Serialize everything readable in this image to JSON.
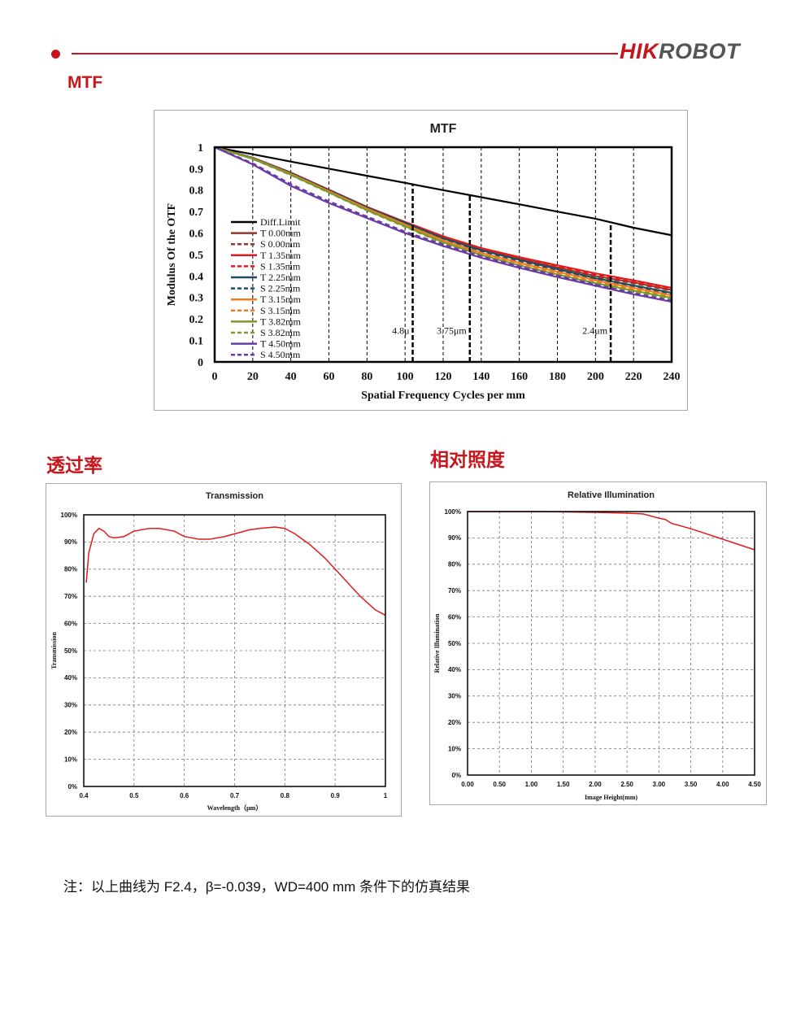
{
  "header": {
    "brand_red": "HIK",
    "brand_gray": "ROBOT",
    "accent_color": "#c8161d"
  },
  "sections": {
    "mtf_title": "MTF",
    "transmission_title": "透过率",
    "illumination_title": "相对照度"
  },
  "note": "注：以上曲线为 F2.4，β=-0.039，WD=400 mm 条件下的仿真结果",
  "chart_data": [
    {
      "type": "line",
      "title": "MTF",
      "xlabel": "Spatial Frequency Cycles per mm",
      "ylabel": "Modulus Of  the OTF",
      "xlim": [
        0,
        240
      ],
      "ylim": [
        0,
        1
      ],
      "xticks": [
        "0",
        "20",
        "40",
        "60",
        "80",
        "100",
        "120",
        "140",
        "160",
        "180",
        "200",
        "220",
        "240"
      ],
      "yticks": [
        "0",
        "0.1",
        "0.2",
        "0.3",
        "0.4",
        "0.5",
        "0.6",
        "0.7",
        "0.8",
        "0.9",
        "1"
      ],
      "grid": "dashed vertical",
      "legend": "left",
      "markers": [
        {
          "x": 104,
          "label": "4.8μ"
        },
        {
          "x": 134,
          "label": "3.75μm"
        },
        {
          "x": 208,
          "label": "2.4μm"
        }
      ],
      "x": [
        0,
        20,
        40,
        60,
        80,
        100,
        120,
        140,
        160,
        180,
        200,
        220,
        240
      ],
      "series": [
        {
          "name": "Diff.Limit",
          "color": "#000000",
          "dash": false,
          "values": [
            1,
            0.967,
            0.933,
            0.9,
            0.867,
            0.834,
            0.8,
            0.767,
            0.734,
            0.7,
            0.667,
            0.625,
            0.59
          ]
        },
        {
          "name": "T 0.00mm",
          "color": "#8b3a2e",
          "dash": false,
          "values": [
            1,
            0.95,
            0.88,
            0.8,
            0.72,
            0.65,
            0.58,
            0.525,
            0.48,
            0.44,
            0.4,
            0.37,
            0.335
          ]
        },
        {
          "name": "S 0.00mm",
          "color": "#8b3a2e",
          "dash": true,
          "values": [
            1,
            0.948,
            0.878,
            0.798,
            0.718,
            0.648,
            0.578,
            0.522,
            0.476,
            0.436,
            0.397,
            0.366,
            0.332
          ]
        },
        {
          "name": "T 1.35mm",
          "color": "#e31a1c",
          "dash": false,
          "values": [
            1,
            0.951,
            0.882,
            0.802,
            0.722,
            0.652,
            0.585,
            0.53,
            0.488,
            0.45,
            0.412,
            0.38,
            0.345
          ]
        },
        {
          "name": "S 1.35mm",
          "color": "#e31a1c",
          "dash": true,
          "values": [
            1,
            0.949,
            0.879,
            0.799,
            0.72,
            0.65,
            0.582,
            0.527,
            0.484,
            0.445,
            0.405,
            0.372,
            0.338
          ]
        },
        {
          "name": "T 2.25mm",
          "color": "#1f4e63",
          "dash": false,
          "values": [
            1,
            0.95,
            0.88,
            0.8,
            0.72,
            0.648,
            0.576,
            0.52,
            0.475,
            0.432,
            0.39,
            0.356,
            0.322
          ]
        },
        {
          "name": "S 2.25mm",
          "color": "#1f4e63",
          "dash": true,
          "values": [
            1,
            0.949,
            0.879,
            0.799,
            0.719,
            0.646,
            0.573,
            0.516,
            0.47,
            0.427,
            0.385,
            0.35,
            0.316
          ]
        },
        {
          "name": "T 3.15mm",
          "color": "#f47c20",
          "dash": false,
          "values": [
            1,
            0.948,
            0.876,
            0.795,
            0.714,
            0.64,
            0.566,
            0.508,
            0.462,
            0.42,
            0.38,
            0.345,
            0.31
          ]
        },
        {
          "name": "S 3.15mm",
          "color": "#f47c20",
          "dash": true,
          "values": [
            1,
            0.947,
            0.875,
            0.793,
            0.712,
            0.637,
            0.563,
            0.504,
            0.457,
            0.414,
            0.373,
            0.338,
            0.303
          ]
        },
        {
          "name": "T 3.82mm",
          "color": "#7a9a2a",
          "dash": false,
          "values": [
            1,
            0.946,
            0.872,
            0.79,
            0.707,
            0.632,
            0.557,
            0.498,
            0.45,
            0.407,
            0.367,
            0.332,
            0.298
          ]
        },
        {
          "name": "S 3.82mm",
          "color": "#7a9a2a",
          "dash": true,
          "values": [
            1,
            0.945,
            0.87,
            0.788,
            0.705,
            0.629,
            0.553,
            0.494,
            0.445,
            0.402,
            0.362,
            0.326,
            0.292
          ]
        },
        {
          "name": "T 4.50mm",
          "color": "#6a3ba8",
          "dash": false,
          "values": [
            1,
            0.92,
            0.82,
            0.74,
            0.67,
            0.6,
            0.54,
            0.485,
            0.438,
            0.395,
            0.355,
            0.315,
            0.28
          ]
        },
        {
          "name": "S 4.50mm",
          "color": "#6a3ba8",
          "dash": true,
          "values": [
            1,
            0.925,
            0.828,
            0.748,
            0.677,
            0.607,
            0.547,
            0.492,
            0.445,
            0.402,
            0.36,
            0.32,
            0.285
          ]
        }
      ]
    },
    {
      "type": "line",
      "title": "Transmission",
      "xlabel": "Wavelength（μm）",
      "ylabel": "Transmission",
      "xlim": [
        0.4,
        1
      ],
      "ylim": [
        0,
        100
      ],
      "xticks": [
        "0.4",
        "0.5",
        "0.6",
        "0.7",
        "0.8",
        "0.9",
        "1"
      ],
      "yticks": [
        "0%",
        "10%",
        "20%",
        "30%",
        "40%",
        "50%",
        "60%",
        "70%",
        "80%",
        "90%",
        "100%"
      ],
      "grid": "dashed",
      "color": "#e31a1c",
      "x": [
        0.405,
        0.41,
        0.42,
        0.43,
        0.44,
        0.45,
        0.46,
        0.48,
        0.5,
        0.53,
        0.55,
        0.58,
        0.6,
        0.63,
        0.65,
        0.68,
        0.7,
        0.73,
        0.75,
        0.78,
        0.8,
        0.82,
        0.85,
        0.88,
        0.9,
        0.93,
        0.95,
        0.98,
        1.0
      ],
      "values": [
        75,
        86,
        93,
        95,
        94,
        92,
        91.5,
        92,
        94,
        95,
        95,
        94,
        92,
        91,
        91,
        92,
        93,
        94.5,
        95,
        95.5,
        95,
        93,
        89,
        84,
        80,
        74,
        70,
        65,
        63
      ]
    },
    {
      "type": "line",
      "title": "Relative Illumination",
      "xlabel": "Image Height(mm)",
      "ylabel": "Relative Illumination",
      "xlim": [
        0,
        4.5
      ],
      "ylim": [
        0,
        100
      ],
      "xticks": [
        "0.00",
        "0.50",
        "1.00",
        "1.50",
        "2.00",
        "2.50",
        "3.00",
        "3.50",
        "4.00",
        "4.50"
      ],
      "yticks": [
        "0%",
        "10%",
        "20%",
        "30%",
        "40%",
        "50%",
        "60%",
        "70%",
        "80%",
        "90%",
        "100%"
      ],
      "grid": "dashed",
      "color": "#e31a1c",
      "x": [
        0,
        0.5,
        1.0,
        1.5,
        2.0,
        2.5,
        2.75,
        3.0,
        3.1,
        3.2,
        3.5,
        4.0,
        4.5
      ],
      "values": [
        100,
        100,
        100,
        99.9,
        99.7,
        99.4,
        99.1,
        97.5,
        97,
        95.5,
        93.5,
        89.5,
        85.5
      ]
    }
  ]
}
